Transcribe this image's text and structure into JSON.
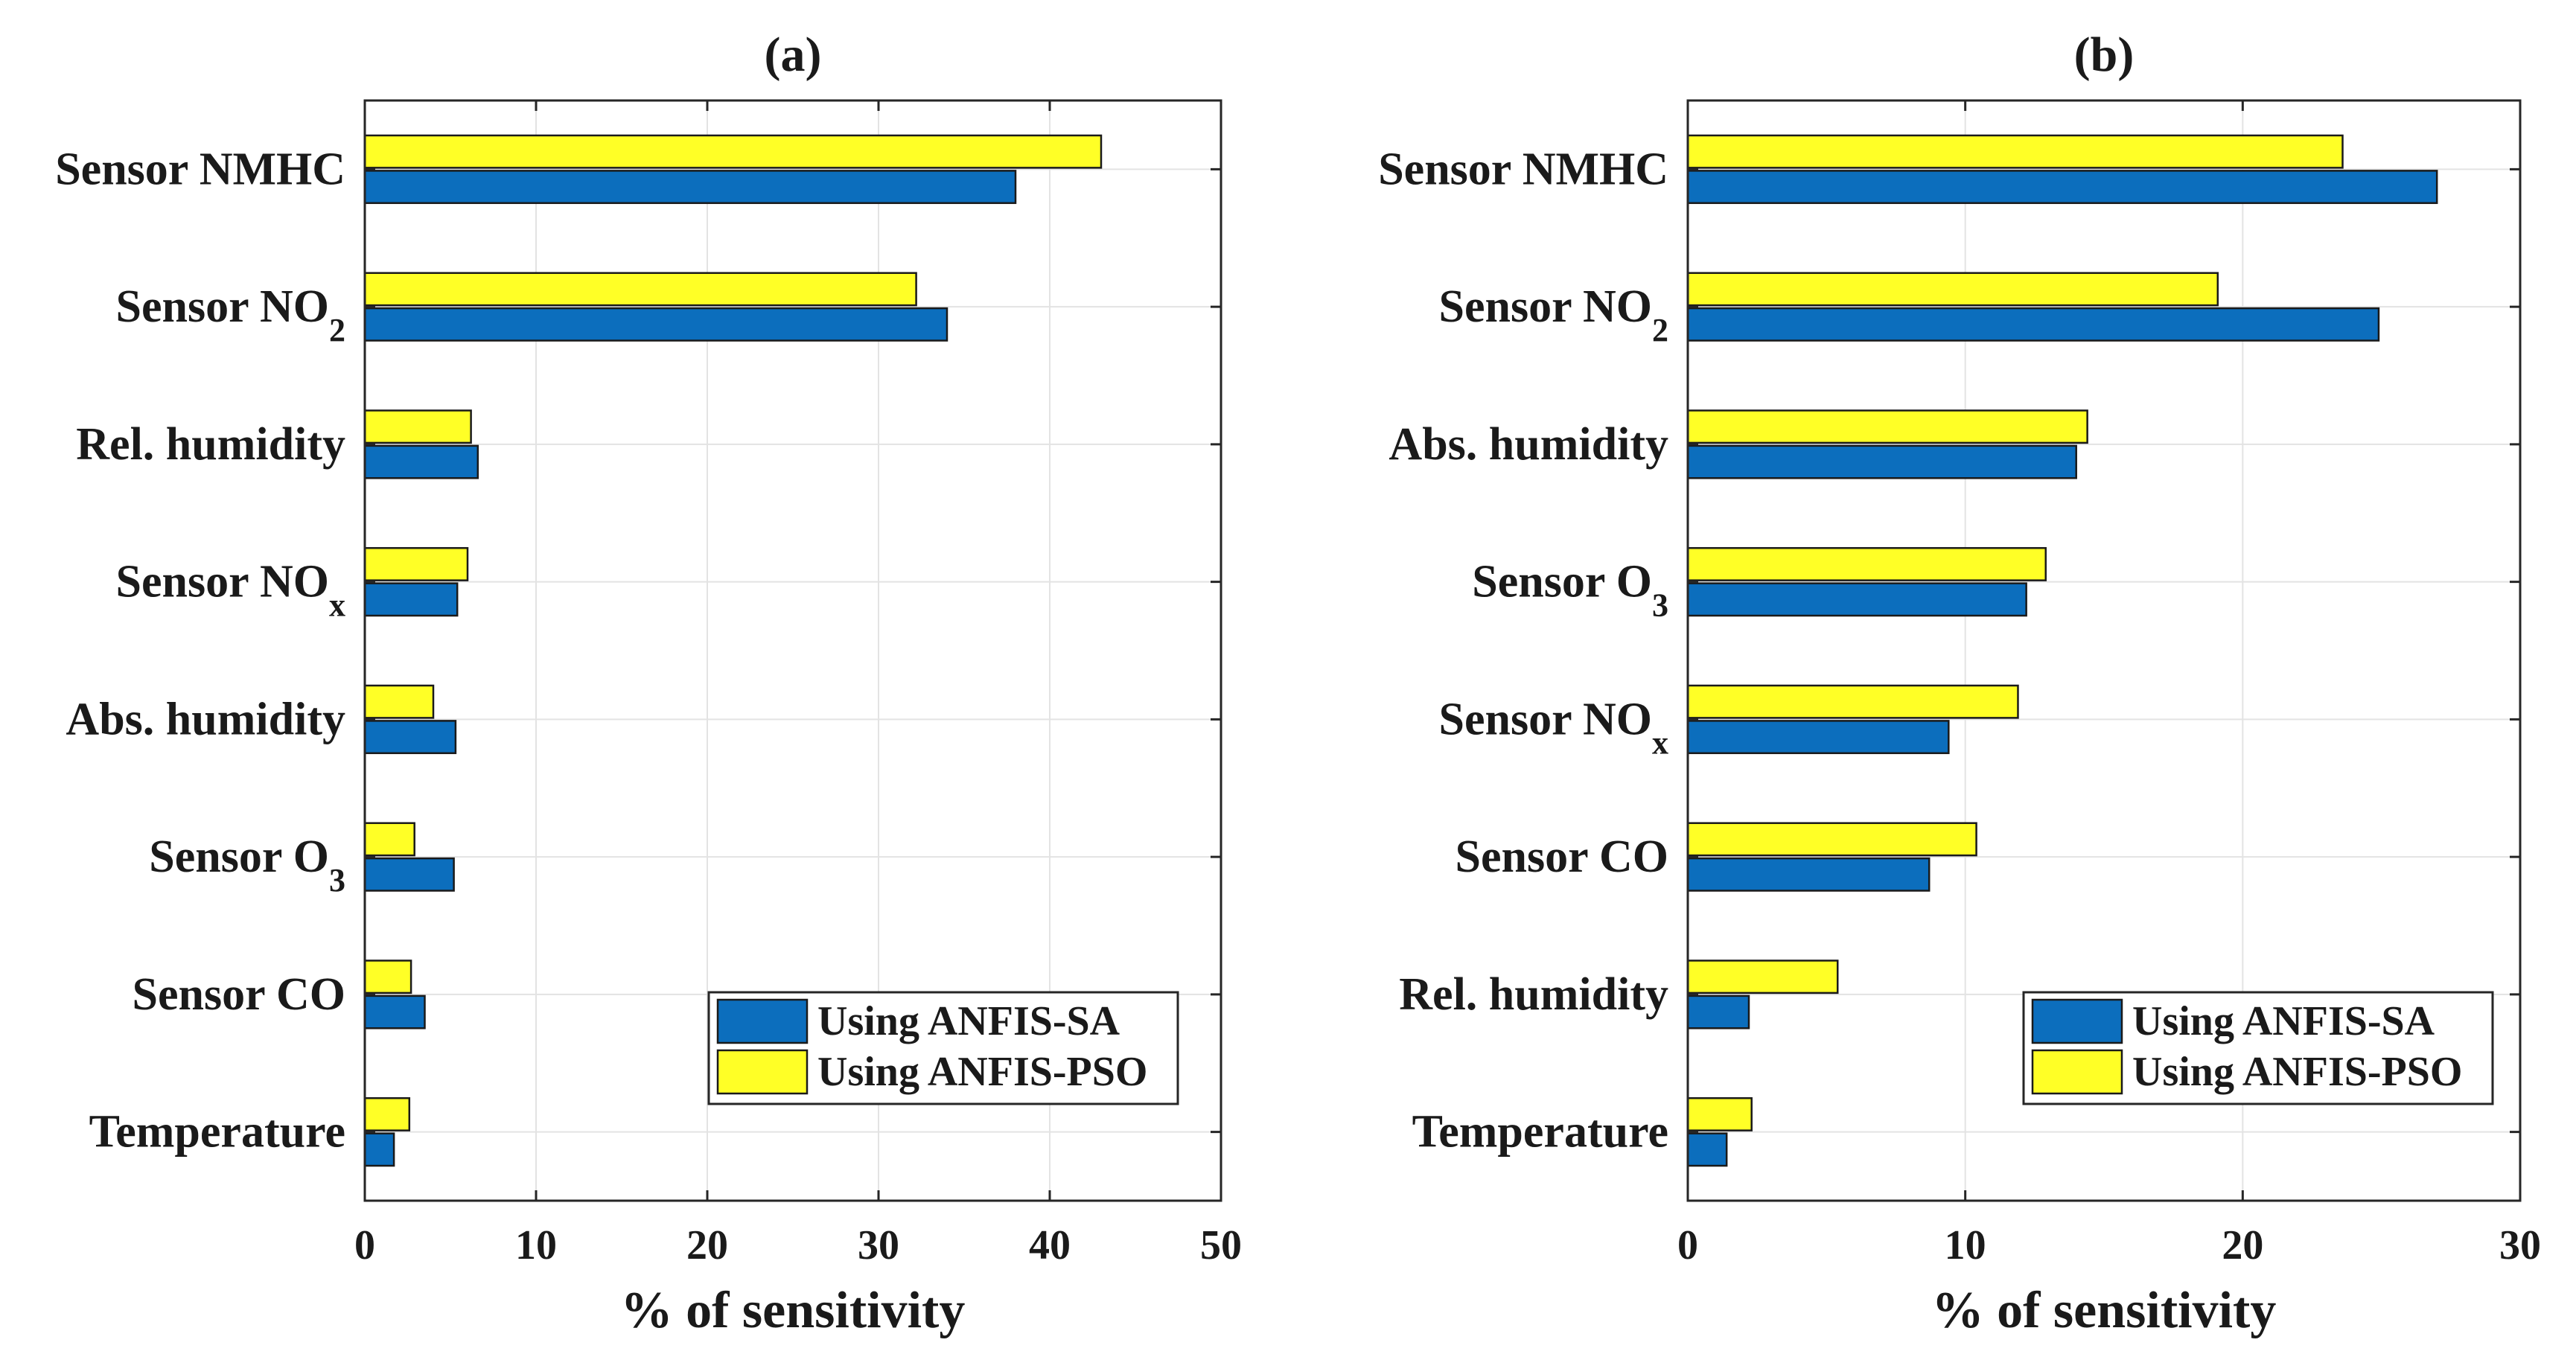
{
  "colors": {
    "sa": "#0c6ebd",
    "pso": "#ffff26",
    "bar_edge": "#1a1a1a",
    "axis": "#262626",
    "grid": "#e3e3e3"
  },
  "chart_data": [
    {
      "type": "bar",
      "orientation": "horizontal",
      "title": "(a)",
      "xlabel": "% of sensitivity",
      "ylabel": "",
      "xlim": [
        0,
        50
      ],
      "xticks": [
        0,
        10,
        20,
        30,
        40,
        50
      ],
      "xtick_labels": [
        "0",
        "10",
        "20",
        "30",
        "40",
        "50"
      ],
      "grid": true,
      "legend_position": "bottom-right",
      "categories": [
        {
          "main": "Sensor NMHC",
          "sub": ""
        },
        {
          "main": "Sensor NO",
          "sub": "2"
        },
        {
          "main": "Rel. humidity",
          "sub": ""
        },
        {
          "main": "Sensor NO",
          "sub": "x"
        },
        {
          "main": "Abs. humidity",
          "sub": ""
        },
        {
          "main": "Sensor O",
          "sub": "3"
        },
        {
          "main": "Sensor CO",
          "sub": ""
        },
        {
          "main": "Temperature",
          "sub": ""
        }
      ],
      "series": [
        {
          "name": "Using ANFIS-SA",
          "color": "#0c6ebd",
          "values": [
            38.0,
            34.0,
            6.6,
            5.4,
            5.3,
            5.2,
            3.5,
            1.7
          ]
        },
        {
          "name": "Using ANFIS-PSO",
          "color": "#ffff26",
          "values": [
            43.0,
            32.2,
            6.2,
            6.0,
            4.0,
            2.9,
            2.7,
            2.6
          ]
        }
      ]
    },
    {
      "type": "bar",
      "orientation": "horizontal",
      "title": "(b)",
      "xlabel": "% of sensitivity",
      "ylabel": "",
      "xlim": [
        0,
        30
      ],
      "xticks": [
        0,
        10,
        20,
        30
      ],
      "xtick_labels": [
        "0",
        "10",
        "20",
        "30"
      ],
      "grid": true,
      "legend_position": "bottom-right",
      "categories": [
        {
          "main": "Sensor NMHC",
          "sub": ""
        },
        {
          "main": "Sensor NO",
          "sub": "2"
        },
        {
          "main": "Abs. humidity",
          "sub": ""
        },
        {
          "main": "Sensor O",
          "sub": "3"
        },
        {
          "main": "Sensor NO",
          "sub": "x"
        },
        {
          "main": "Sensor CO",
          "sub": ""
        },
        {
          "main": "Rel. humidity",
          "sub": ""
        },
        {
          "main": "Temperature",
          "sub": ""
        }
      ],
      "series": [
        {
          "name": "Using ANFIS-SA",
          "color": "#0c6ebd",
          "values": [
            27.0,
            24.9,
            14.0,
            12.2,
            9.4,
            8.7,
            2.2,
            1.4
          ]
        },
        {
          "name": "Using ANFIS-PSO",
          "color": "#ffff26",
          "values": [
            23.6,
            19.1,
            14.4,
            12.9,
            11.9,
            10.4,
            5.4,
            2.3
          ]
        }
      ]
    }
  ]
}
